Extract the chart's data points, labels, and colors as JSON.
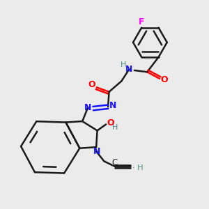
{
  "bg_color": "#ebebeb",
  "bond_color": "#1a1a1a",
  "bond_width": 1.8,
  "N_color": "#1414FF",
  "O_color": "#FF0000",
  "F_color": "#FF00FF",
  "H_color": "#4d8585",
  "figsize": [
    3.0,
    3.0
  ],
  "dpi": 100,
  "xlim": [
    0,
    10
  ],
  "ylim": [
    0,
    10
  ]
}
